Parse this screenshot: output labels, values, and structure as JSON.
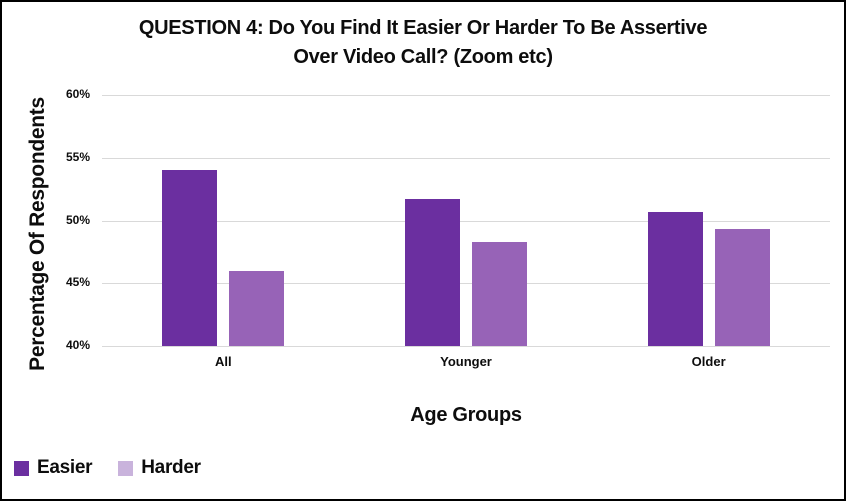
{
  "window": {
    "background": "#ffffff",
    "border_color": "#000000"
  },
  "title": {
    "line1": "QUESTION 4: Do You Find It Easier Or Harder To Be Assertive",
    "line2": "Over Video Call? (Zoom etc)"
  },
  "chart_data": {
    "type": "bar",
    "title": "QUESTION 4: Do You Find It Easier Or Harder To Be Assertive Over Video Call? (Zoom etc)",
    "xlabel": "Age Groups",
    "ylabel": "Percentage Of Respondents",
    "categories": [
      "All",
      "Younger",
      "Older"
    ],
    "series": [
      {
        "name": "Easier",
        "color": "#6b2fa0",
        "values": [
          54,
          51.7,
          50.7
        ]
      },
      {
        "name": "Harder",
        "color": "#9763b7",
        "values": [
          46,
          48.3,
          49.3
        ]
      }
    ],
    "ylim": [
      40,
      60
    ],
    "yticks": [
      {
        "value": 40,
        "label": "40%"
      },
      {
        "value": 45,
        "label": "45%"
      },
      {
        "value": 50,
        "label": "50%"
      },
      {
        "value": 55,
        "label": "55%"
      },
      {
        "value": 60,
        "label": "60%"
      }
    ],
    "grid": true,
    "gridline_color": "#d9d9d9",
    "legend_position": "bottom-left"
  },
  "legend": {
    "items": [
      {
        "label": "Easier",
        "color": "#6b2fa0"
      },
      {
        "label": "Harder",
        "color": "#c9b3dc"
      }
    ]
  }
}
